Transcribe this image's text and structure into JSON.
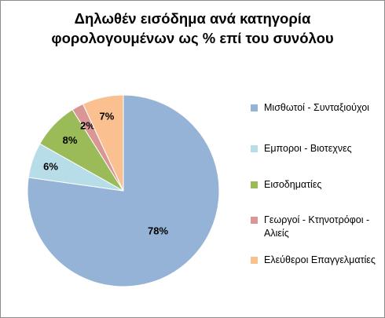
{
  "chart_data": {
    "type": "pie",
    "title_lines": [
      "Δηλωθέν εισόδημα ανά κατηγορία",
      "φορολογουμένων ως % επί του συνόλου"
    ],
    "slices": [
      {
        "label": "Μισθωτοί - Συνταξιούχοι",
        "value": 78,
        "data_label": "78%",
        "color": "#95b3d7"
      },
      {
        "label": "Εμποροι - Βιοτεχνες",
        "value": 6,
        "data_label": "6%",
        "color": "#b7dde8"
      },
      {
        "label": "Εισοδηματίες",
        "value": 8,
        "data_label": "8%",
        "color": "#9bbb59"
      },
      {
        "label": "Γεωργοί - Κτηνοτρόφοι - Αλιείς",
        "value": 2,
        "data_label": "2%",
        "color": "#d99694"
      },
      {
        "label": "Ελεύθεροι Επαγγελματίες",
        "value": 7,
        "data_label": "7%",
        "color": "#fac090"
      }
    ],
    "legend_position": "right"
  }
}
